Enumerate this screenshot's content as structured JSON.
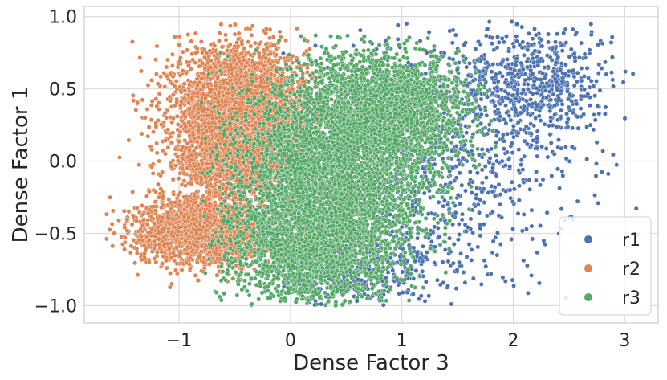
{
  "chart_data": {
    "type": "scatter",
    "xlabel": "Dense Factor 3",
    "ylabel": "Dense Factor 1",
    "xlim": [
      -1.85,
      3.3
    ],
    "ylim": [
      -1.12,
      1.07
    ],
    "x_ticks": [
      {
        "value": -1,
        "label": "−1"
      },
      {
        "value": 0,
        "label": "0"
      },
      {
        "value": 1,
        "label": "1"
      },
      {
        "value": 2,
        "label": "2"
      },
      {
        "value": 3,
        "label": "3"
      }
    ],
    "y_ticks": [
      {
        "value": -1.0,
        "label": "−1.0"
      },
      {
        "value": -0.5,
        "label": "−0.5"
      },
      {
        "value": 0.0,
        "label": "0.0"
      },
      {
        "value": 0.5,
        "label": "0.5"
      },
      {
        "value": 1.0,
        "label": "1.0"
      }
    ],
    "grid": true,
    "legend_position": "bottom-right",
    "series": [
      {
        "name": "r1",
        "color": "#4c72b0",
        "approx_point_count": 2000,
        "clusters": [
          {
            "x_mean": 1.3,
            "y_mean": 0.0,
            "x_sd": 0.65,
            "y_sd": 0.45,
            "weight": 0.5
          },
          {
            "x_mean": 2.2,
            "y_mean": 0.55,
            "x_sd": 0.35,
            "y_sd": 0.2,
            "weight": 0.3
          },
          {
            "x_mean": 0.6,
            "y_mean": -0.75,
            "x_sd": 0.35,
            "y_sd": 0.15,
            "weight": 0.2
          }
        ],
        "x_range": [
          -0.6,
          3.15
        ],
        "y_range": [
          -1.0,
          0.97
        ]
      },
      {
        "name": "r2",
        "color": "#dd8452",
        "approx_point_count": 6000,
        "clusters": [
          {
            "x_mean": -0.45,
            "y_mean": 0.35,
            "x_sd": 0.3,
            "y_sd": 0.22,
            "weight": 0.55
          },
          {
            "x_mean": -0.5,
            "y_mean": 0.0,
            "x_sd": 0.25,
            "y_sd": 0.12,
            "weight": 0.15
          },
          {
            "x_mean": -0.8,
            "y_mean": -0.48,
            "x_sd": 0.3,
            "y_sd": 0.12,
            "weight": 0.3
          }
        ],
        "x_range": [
          -1.65,
          0.3
        ],
        "y_range": [
          -0.88,
          0.95
        ]
      },
      {
        "name": "r3",
        "color": "#55a868",
        "approx_point_count": 7000,
        "clusters": [
          {
            "x_mean": 0.4,
            "y_mean": -0.1,
            "x_sd": 0.4,
            "y_sd": 0.35,
            "weight": 0.55
          },
          {
            "x_mean": 0.9,
            "y_mean": 0.35,
            "x_sd": 0.35,
            "y_sd": 0.2,
            "weight": 0.25
          },
          {
            "x_mean": 0.1,
            "y_mean": -0.6,
            "x_sd": 0.35,
            "y_sd": 0.2,
            "weight": 0.2
          }
        ],
        "x_range": [
          -0.8,
          1.85
        ],
        "y_range": [
          -1.0,
          0.88
        ]
      }
    ]
  }
}
